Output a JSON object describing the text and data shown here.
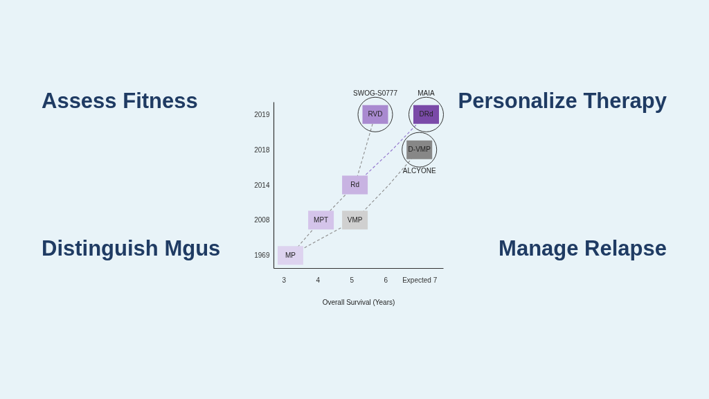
{
  "chart_data": {
    "type": "scatter",
    "orientation": "horizontal",
    "xlabel": "Overall Survival (Years)",
    "categories": [
      "2019",
      "2018",
      "2014",
      "2008",
      "1969"
    ],
    "annotations": [
      "Assess Fitness",
      "Personalize Therapy",
      "Distinguish Mgus",
      "Manage Relapse",
      {
        "text": "SWOG-S0777",
        "x": 5.7,
        "y": "2019"
      },
      {
        "text": "MAIA",
        "x": 7.2,
        "y": "2019"
      },
      {
        "text": "ALCYONE",
        "x": 7.0,
        "y": "2018"
      }
    ],
    "xlim": [
      2.7,
      7.7
    ],
    "xticks": [
      3,
      4,
      5,
      6,
      {
        "value": 7,
        "label": "Expected 7"
      }
    ],
    "grid": false,
    "series": [
      {
        "type": "line",
        "color": "#8c8c8c",
        "line_style": "dashed",
        "marker": "none",
        "values": [
          5.7,
          5.4,
          5.1,
          4.1,
          3.2
        ]
      },
      {
        "type": "line",
        "color": "#8c8c8c",
        "line_style": "dashed",
        "marker": "none",
        "values": [
          null,
          7.0,
          6.1,
          5.1,
          3.2
        ]
      },
      {
        "type": "line",
        "color": "#8e6fcc",
        "line_style": "dashed",
        "marker": "none",
        "values": [
          7.2,
          6.2,
          5.1,
          null,
          null
        ]
      },
      {
        "name": "MP",
        "color": "#ddd3ef",
        "marker": "square",
        "values": [
          null,
          null,
          null,
          null,
          3.2
        ]
      },
      {
        "name": "MPT",
        "color": "#d4c4ea",
        "marker": "square",
        "values": [
          null,
          null,
          null,
          4.1,
          null
        ]
      },
      {
        "name": "VMP",
        "color": "#d0d0d0",
        "marker": "square",
        "values": [
          null,
          null,
          null,
          5.1,
          null
        ]
      },
      {
        "name": "Rd",
        "color": "#c8b3e2",
        "marker": "square",
        "values": [
          null,
          null,
          5.1,
          null,
          null
        ]
      },
      {
        "name": "RVD",
        "color": "#a98ad0",
        "marker": "square",
        "values": [
          5.7,
          null,
          null,
          null,
          null
        ]
      },
      {
        "name": "D-VMP",
        "color": "#878787",
        "marker": "square",
        "values": [
          null,
          7.0,
          null,
          null,
          null
        ]
      },
      {
        "name": "DRd",
        "color": "#7a4aa8",
        "marker": "square",
        "values": [
          7.2,
          null,
          null,
          null,
          null
        ]
      }
    ]
  }
}
